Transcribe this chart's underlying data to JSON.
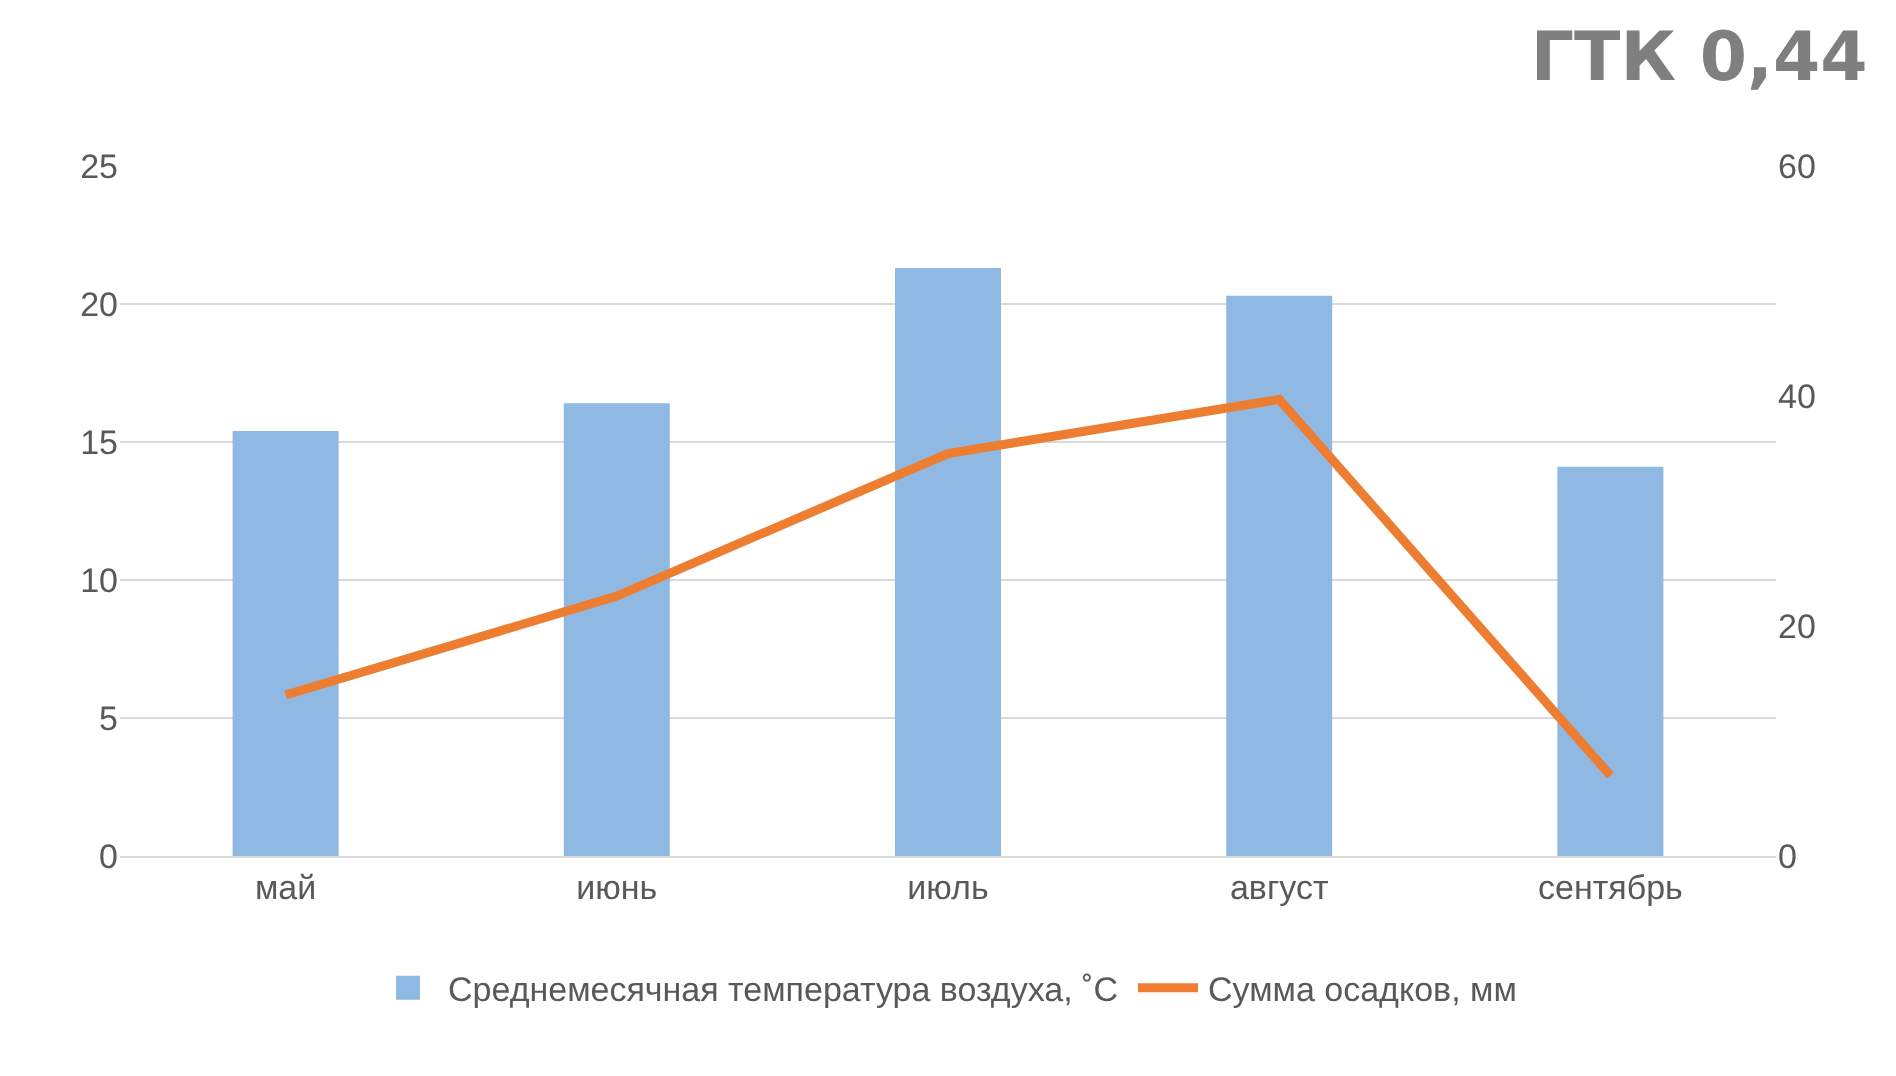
{
  "chart_data": {
    "type": "bar",
    "title": "ГТК 0,44",
    "categories": [
      "май",
      "июнь",
      "июль",
      "август",
      "сентябрь"
    ],
    "series": [
      {
        "name": "Среднемесячная температура воздуха, ˚С",
        "color": "#8fb9e3",
        "values": [
          15.4,
          16.4,
          21.3,
          20.3,
          14.1
        ]
      },
      {
        "name": "Сумма осадков, мм",
        "type": "line",
        "axis": "y2",
        "color": "#ed7d31",
        "values": [
          14,
          22.6,
          35,
          39.7,
          7
        ]
      }
    ],
    "ylim": [
      0,
      25
    ],
    "yticks": [
      0,
      5,
      10,
      15,
      20,
      25
    ],
    "y2lim": [
      0,
      60
    ],
    "y2ticks": [
      0,
      20,
      40,
      60
    ],
    "grid": "y",
    "legend": "bottom",
    "marker": "none",
    "line_style": "solid"
  }
}
